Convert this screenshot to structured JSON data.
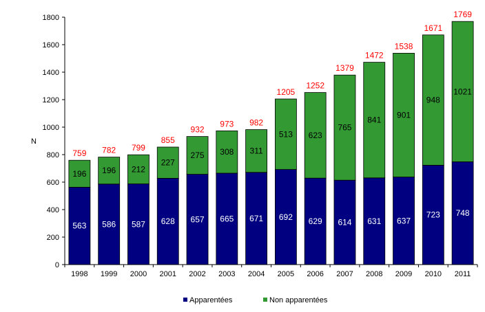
{
  "chart_data": {
    "type": "bar",
    "stacked": true,
    "categories": [
      "1998",
      "1999",
      "2000",
      "2001",
      "2002",
      "2003",
      "2004",
      "2005",
      "2006",
      "2007",
      "2008",
      "2009",
      "2010",
      "2011"
    ],
    "series": [
      {
        "name": "Apparentées",
        "color": "#000080",
        "label_color": "#ffffff",
        "values": [
          563,
          586,
          587,
          628,
          657,
          665,
          671,
          692,
          629,
          614,
          631,
          637,
          723,
          748
        ]
      },
      {
        "name": "Non apparentées",
        "color": "#339933",
        "label_color": "#000000",
        "values": [
          196,
          196,
          212,
          227,
          275,
          308,
          311,
          513,
          623,
          765,
          841,
          901,
          948,
          1021
        ]
      }
    ],
    "totals": [
      759,
      782,
      799,
      855,
      932,
      973,
      982,
      1205,
      1252,
      1379,
      1472,
      1538,
      1671,
      1769
    ],
    "total_label_color": "#ff0000",
    "ylabel": "N",
    "xlabel": "",
    "ylim": [
      0,
      1800
    ],
    "yticks": [
      0,
      200,
      400,
      600,
      800,
      1000,
      1200,
      1400,
      1600,
      1800
    ],
    "grid": false,
    "legend_position": "bottom"
  }
}
